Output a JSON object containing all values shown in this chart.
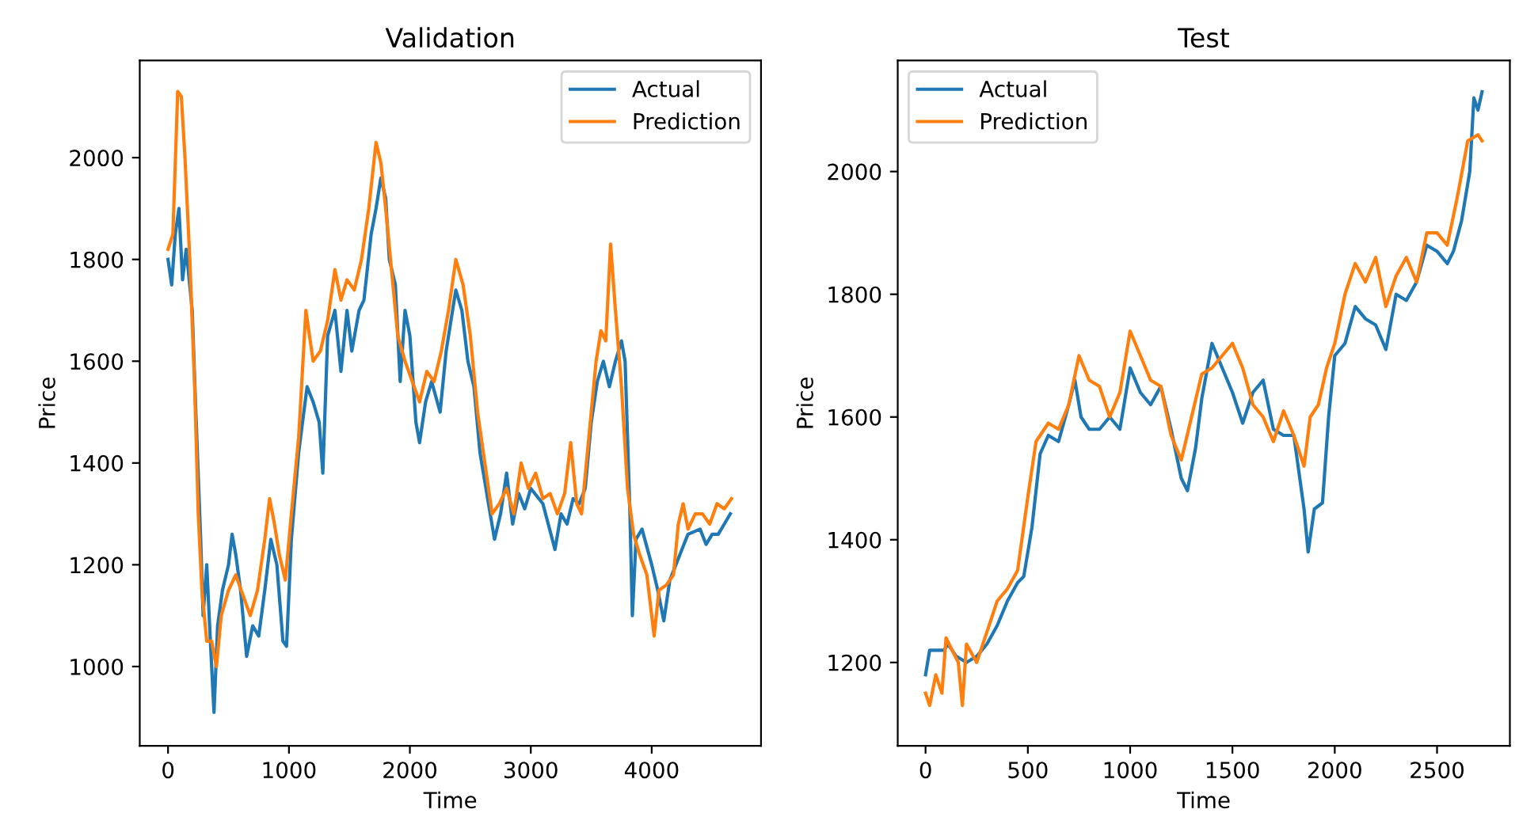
{
  "chart_data": [
    {
      "type": "line",
      "title": "Validation",
      "xlabel": "Time",
      "ylabel": "Price",
      "xlim": [
        -234,
        4904
      ],
      "ylim": [
        844,
        2191
      ],
      "xticks": [
        0,
        1000,
        2000,
        3000,
        4000
      ],
      "yticks": [
        1000,
        1200,
        1400,
        1600,
        1800,
        2000
      ],
      "grid": false,
      "legend": "top right",
      "series": [
        {
          "name": "Actual",
          "color": "#1f77b4",
          "x": [
            0,
            30,
            60,
            90,
            120,
            150,
            200,
            230,
            270,
            290,
            320,
            350,
            380,
            410,
            450,
            500,
            530,
            560,
            600,
            650,
            700,
            750,
            800,
            850,
            900,
            950,
            980,
            1020,
            1080,
            1150,
            1200,
            1250,
            1280,
            1320,
            1380,
            1430,
            1480,
            1520,
            1580,
            1620,
            1680,
            1720,
            1760,
            1800,
            1830,
            1880,
            1920,
            1960,
            2000,
            2050,
            2080,
            2130,
            2180,
            2250,
            2300,
            2380,
            2430,
            2480,
            2530,
            2580,
            2650,
            2700,
            2750,
            2800,
            2850,
            2900,
            2950,
            3000,
            3100,
            3200,
            3250,
            3300,
            3350,
            3400,
            3450,
            3500,
            3550,
            3600,
            3650,
            3700,
            3750,
            3780,
            3820,
            3840,
            3870,
            3920,
            4000,
            4050,
            4100,
            4150,
            4200,
            4250,
            4300,
            4400,
            4450,
            4500,
            4550,
            4600,
            4650
          ],
          "values": [
            1800,
            1750,
            1850,
            1900,
            1760,
            1820,
            1700,
            1500,
            1250,
            1100,
            1200,
            1050,
            910,
            1080,
            1150,
            1200,
            1260,
            1220,
            1150,
            1020,
            1080,
            1060,
            1150,
            1250,
            1200,
            1050,
            1040,
            1250,
            1420,
            1550,
            1520,
            1480,
            1380,
            1650,
            1700,
            1580,
            1700,
            1620,
            1700,
            1720,
            1850,
            1900,
            1960,
            1920,
            1800,
            1750,
            1560,
            1700,
            1650,
            1480,
            1440,
            1520,
            1560,
            1500,
            1620,
            1740,
            1700,
            1600,
            1550,
            1420,
            1320,
            1250,
            1300,
            1380,
            1280,
            1340,
            1310,
            1350,
            1320,
            1230,
            1300,
            1280,
            1330,
            1320,
            1350,
            1480,
            1560,
            1600,
            1550,
            1600,
            1640,
            1600,
            1300,
            1100,
            1250,
            1270,
            1200,
            1150,
            1090,
            1170,
            1200,
            1230,
            1260,
            1270,
            1240,
            1260,
            1260,
            1280,
            1300
          ]
        },
        {
          "name": "Prediction",
          "color": "#ff7f0e",
          "x": [
            0,
            40,
            80,
            110,
            140,
            180,
            220,
            250,
            280,
            320,
            360,
            400,
            440,
            500,
            560,
            620,
            680,
            740,
            800,
            840,
            880,
            920,
            970,
            1020,
            1080,
            1140,
            1200,
            1260,
            1320,
            1380,
            1430,
            1480,
            1540,
            1600,
            1660,
            1720,
            1760,
            1800,
            1860,
            1900,
            1960,
            2020,
            2080,
            2140,
            2200,
            2260,
            2320,
            2380,
            2440,
            2500,
            2560,
            2620,
            2680,
            2740,
            2800,
            2860,
            2920,
            2980,
            3040,
            3100,
            3160,
            3220,
            3280,
            3330,
            3380,
            3420,
            3480,
            3540,
            3580,
            3620,
            3660,
            3700,
            3750,
            3800,
            3850,
            3900,
            3960,
            4020,
            4060,
            4120,
            4180,
            4220,
            4260,
            4300,
            4360,
            4420,
            4480,
            4540,
            4600,
            4660
          ],
          "values": [
            1820,
            1850,
            2130,
            2120,
            2000,
            1800,
            1550,
            1300,
            1150,
            1050,
            1050,
            1000,
            1100,
            1150,
            1180,
            1140,
            1100,
            1150,
            1250,
            1330,
            1280,
            1220,
            1170,
            1300,
            1450,
            1700,
            1600,
            1620,
            1680,
            1780,
            1720,
            1760,
            1740,
            1800,
            1900,
            2030,
            1990,
            1900,
            1750,
            1650,
            1600,
            1560,
            1520,
            1580,
            1560,
            1620,
            1700,
            1800,
            1750,
            1650,
            1500,
            1400,
            1300,
            1320,
            1350,
            1300,
            1400,
            1350,
            1380,
            1330,
            1340,
            1300,
            1340,
            1440,
            1320,
            1300,
            1450,
            1600,
            1660,
            1640,
            1830,
            1700,
            1550,
            1350,
            1260,
            1220,
            1180,
            1060,
            1150,
            1160,
            1180,
            1280,
            1320,
            1270,
            1300,
            1300,
            1280,
            1320,
            1310,
            1330
          ]
        }
      ]
    },
    {
      "type": "line",
      "title": "Test",
      "xlabel": "Time",
      "ylabel": "Price",
      "xlim": [
        -136,
        2856
      ],
      "ylim": [
        1064,
        2181
      ],
      "xticks": [
        0,
        500,
        1000,
        1500,
        2000,
        2500
      ],
      "yticks": [
        1200,
        1400,
        1600,
        1800,
        2000
      ],
      "grid": false,
      "legend": "top left",
      "series": [
        {
          "name": "Actual",
          "color": "#1f77b4",
          "x": [
            0,
            20,
            60,
            90,
            110,
            150,
            200,
            250,
            300,
            350,
            400,
            450,
            480,
            520,
            560,
            600,
            650,
            700,
            730,
            760,
            800,
            850,
            900,
            950,
            1000,
            1050,
            1100,
            1150,
            1200,
            1250,
            1280,
            1320,
            1350,
            1400,
            1450,
            1500,
            1550,
            1600,
            1650,
            1700,
            1750,
            1800,
            1850,
            1870,
            1900,
            1940,
            1970,
            2000,
            2050,
            2100,
            2150,
            2200,
            2250,
            2300,
            2350,
            2400,
            2450,
            2500,
            2550,
            2580,
            2620,
            2660,
            2680,
            2700,
            2720
          ],
          "values": [
            1180,
            1220,
            1220,
            1220,
            1230,
            1210,
            1200,
            1210,
            1230,
            1260,
            1300,
            1330,
            1340,
            1420,
            1540,
            1570,
            1560,
            1620,
            1660,
            1600,
            1580,
            1580,
            1600,
            1580,
            1680,
            1640,
            1620,
            1650,
            1580,
            1500,
            1480,
            1550,
            1630,
            1720,
            1680,
            1640,
            1590,
            1640,
            1660,
            1580,
            1570,
            1570,
            1450,
            1380,
            1450,
            1460,
            1600,
            1700,
            1720,
            1780,
            1760,
            1750,
            1710,
            1800,
            1790,
            1820,
            1880,
            1870,
            1850,
            1870,
            1920,
            2000,
            2120,
            2100,
            2130
          ]
        },
        {
          "name": "Prediction",
          "color": "#ff7f0e",
          "x": [
            0,
            20,
            50,
            80,
            100,
            130,
            160,
            180,
            200,
            250,
            300,
            350,
            400,
            450,
            500,
            540,
            600,
            650,
            700,
            750,
            800,
            850,
            900,
            950,
            1000,
            1050,
            1100,
            1150,
            1200,
            1250,
            1300,
            1350,
            1400,
            1450,
            1500,
            1550,
            1600,
            1650,
            1700,
            1750,
            1800,
            1850,
            1880,
            1920,
            1960,
            2000,
            2050,
            2100,
            2150,
            2200,
            2250,
            2300,
            2350,
            2400,
            2450,
            2500,
            2550,
            2600,
            2650,
            2700,
            2720
          ],
          "values": [
            1150,
            1130,
            1180,
            1150,
            1240,
            1220,
            1200,
            1130,
            1230,
            1200,
            1250,
            1300,
            1320,
            1350,
            1470,
            1560,
            1590,
            1580,
            1620,
            1700,
            1660,
            1650,
            1600,
            1640,
            1740,
            1700,
            1660,
            1650,
            1570,
            1530,
            1600,
            1670,
            1680,
            1700,
            1720,
            1680,
            1620,
            1600,
            1560,
            1610,
            1570,
            1520,
            1600,
            1620,
            1680,
            1720,
            1800,
            1850,
            1820,
            1860,
            1780,
            1830,
            1860,
            1820,
            1900,
            1900,
            1880,
            1960,
            2050,
            2060,
            2050
          ]
        }
      ]
    }
  ]
}
